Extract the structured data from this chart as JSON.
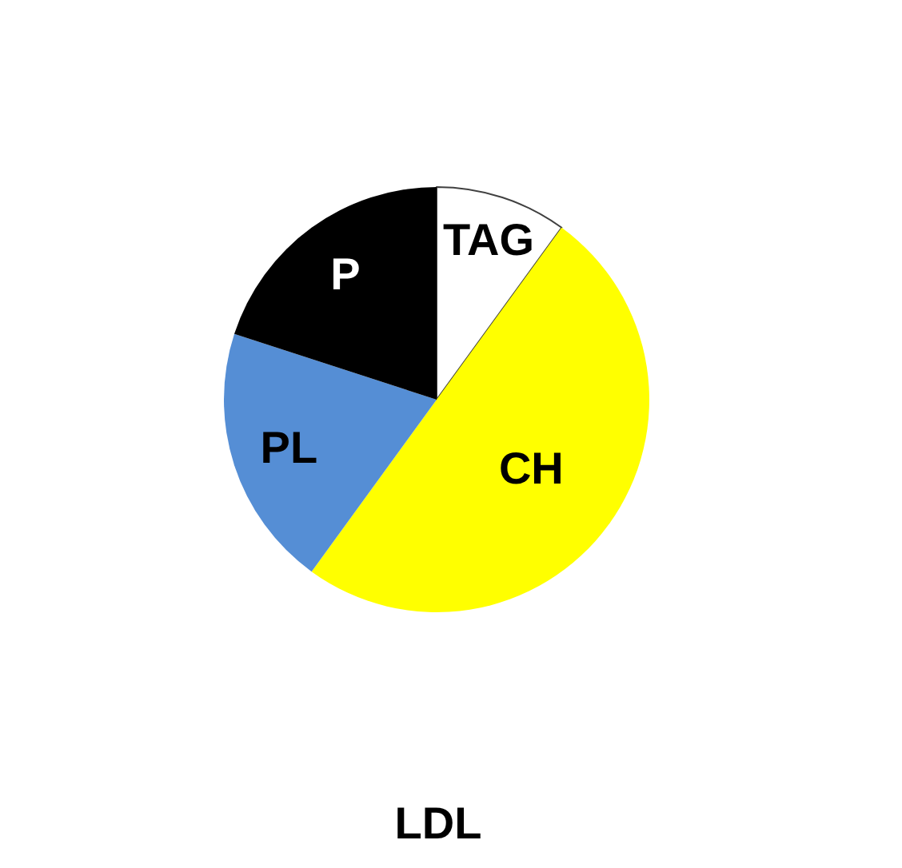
{
  "chart_data": {
    "type": "pie",
    "title": "LDL",
    "categories": [
      "TAG",
      "CH",
      "PL",
      "P"
    ],
    "values": [
      10,
      50,
      20,
      20
    ],
    "colors": [
      "#ffffff",
      "#ffff00",
      "#558ed5",
      "#000000"
    ]
  }
}
